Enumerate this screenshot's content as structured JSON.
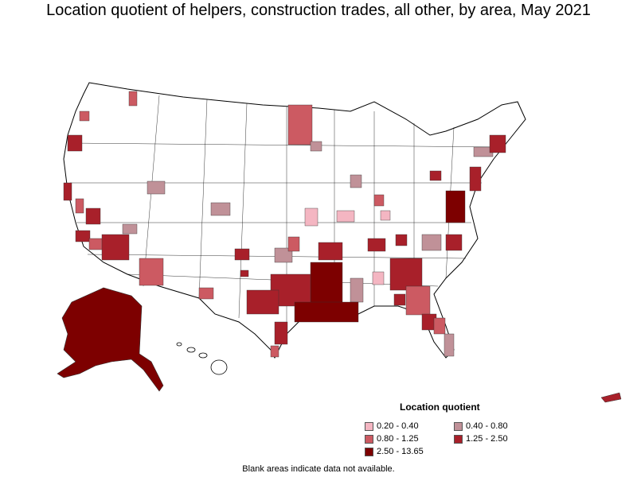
{
  "title": "Location quotient of helpers, construction trades, all other, by area, May 2021",
  "legend": {
    "title": "Location quotient",
    "items": [
      {
        "label": "0.20 - 0.40",
        "color": "#f4b6c2"
      },
      {
        "label": "0.40 - 0.80",
        "color": "#c09198"
      },
      {
        "label": "0.80 - 1.25",
        "color": "#cc5a62"
      },
      {
        "label": "1.25 - 2.50",
        "color": "#a8202a"
      },
      {
        "label": "2.50 - 13.65",
        "color": "#7d0000"
      }
    ]
  },
  "footnote": "Blank areas indicate data not available."
}
